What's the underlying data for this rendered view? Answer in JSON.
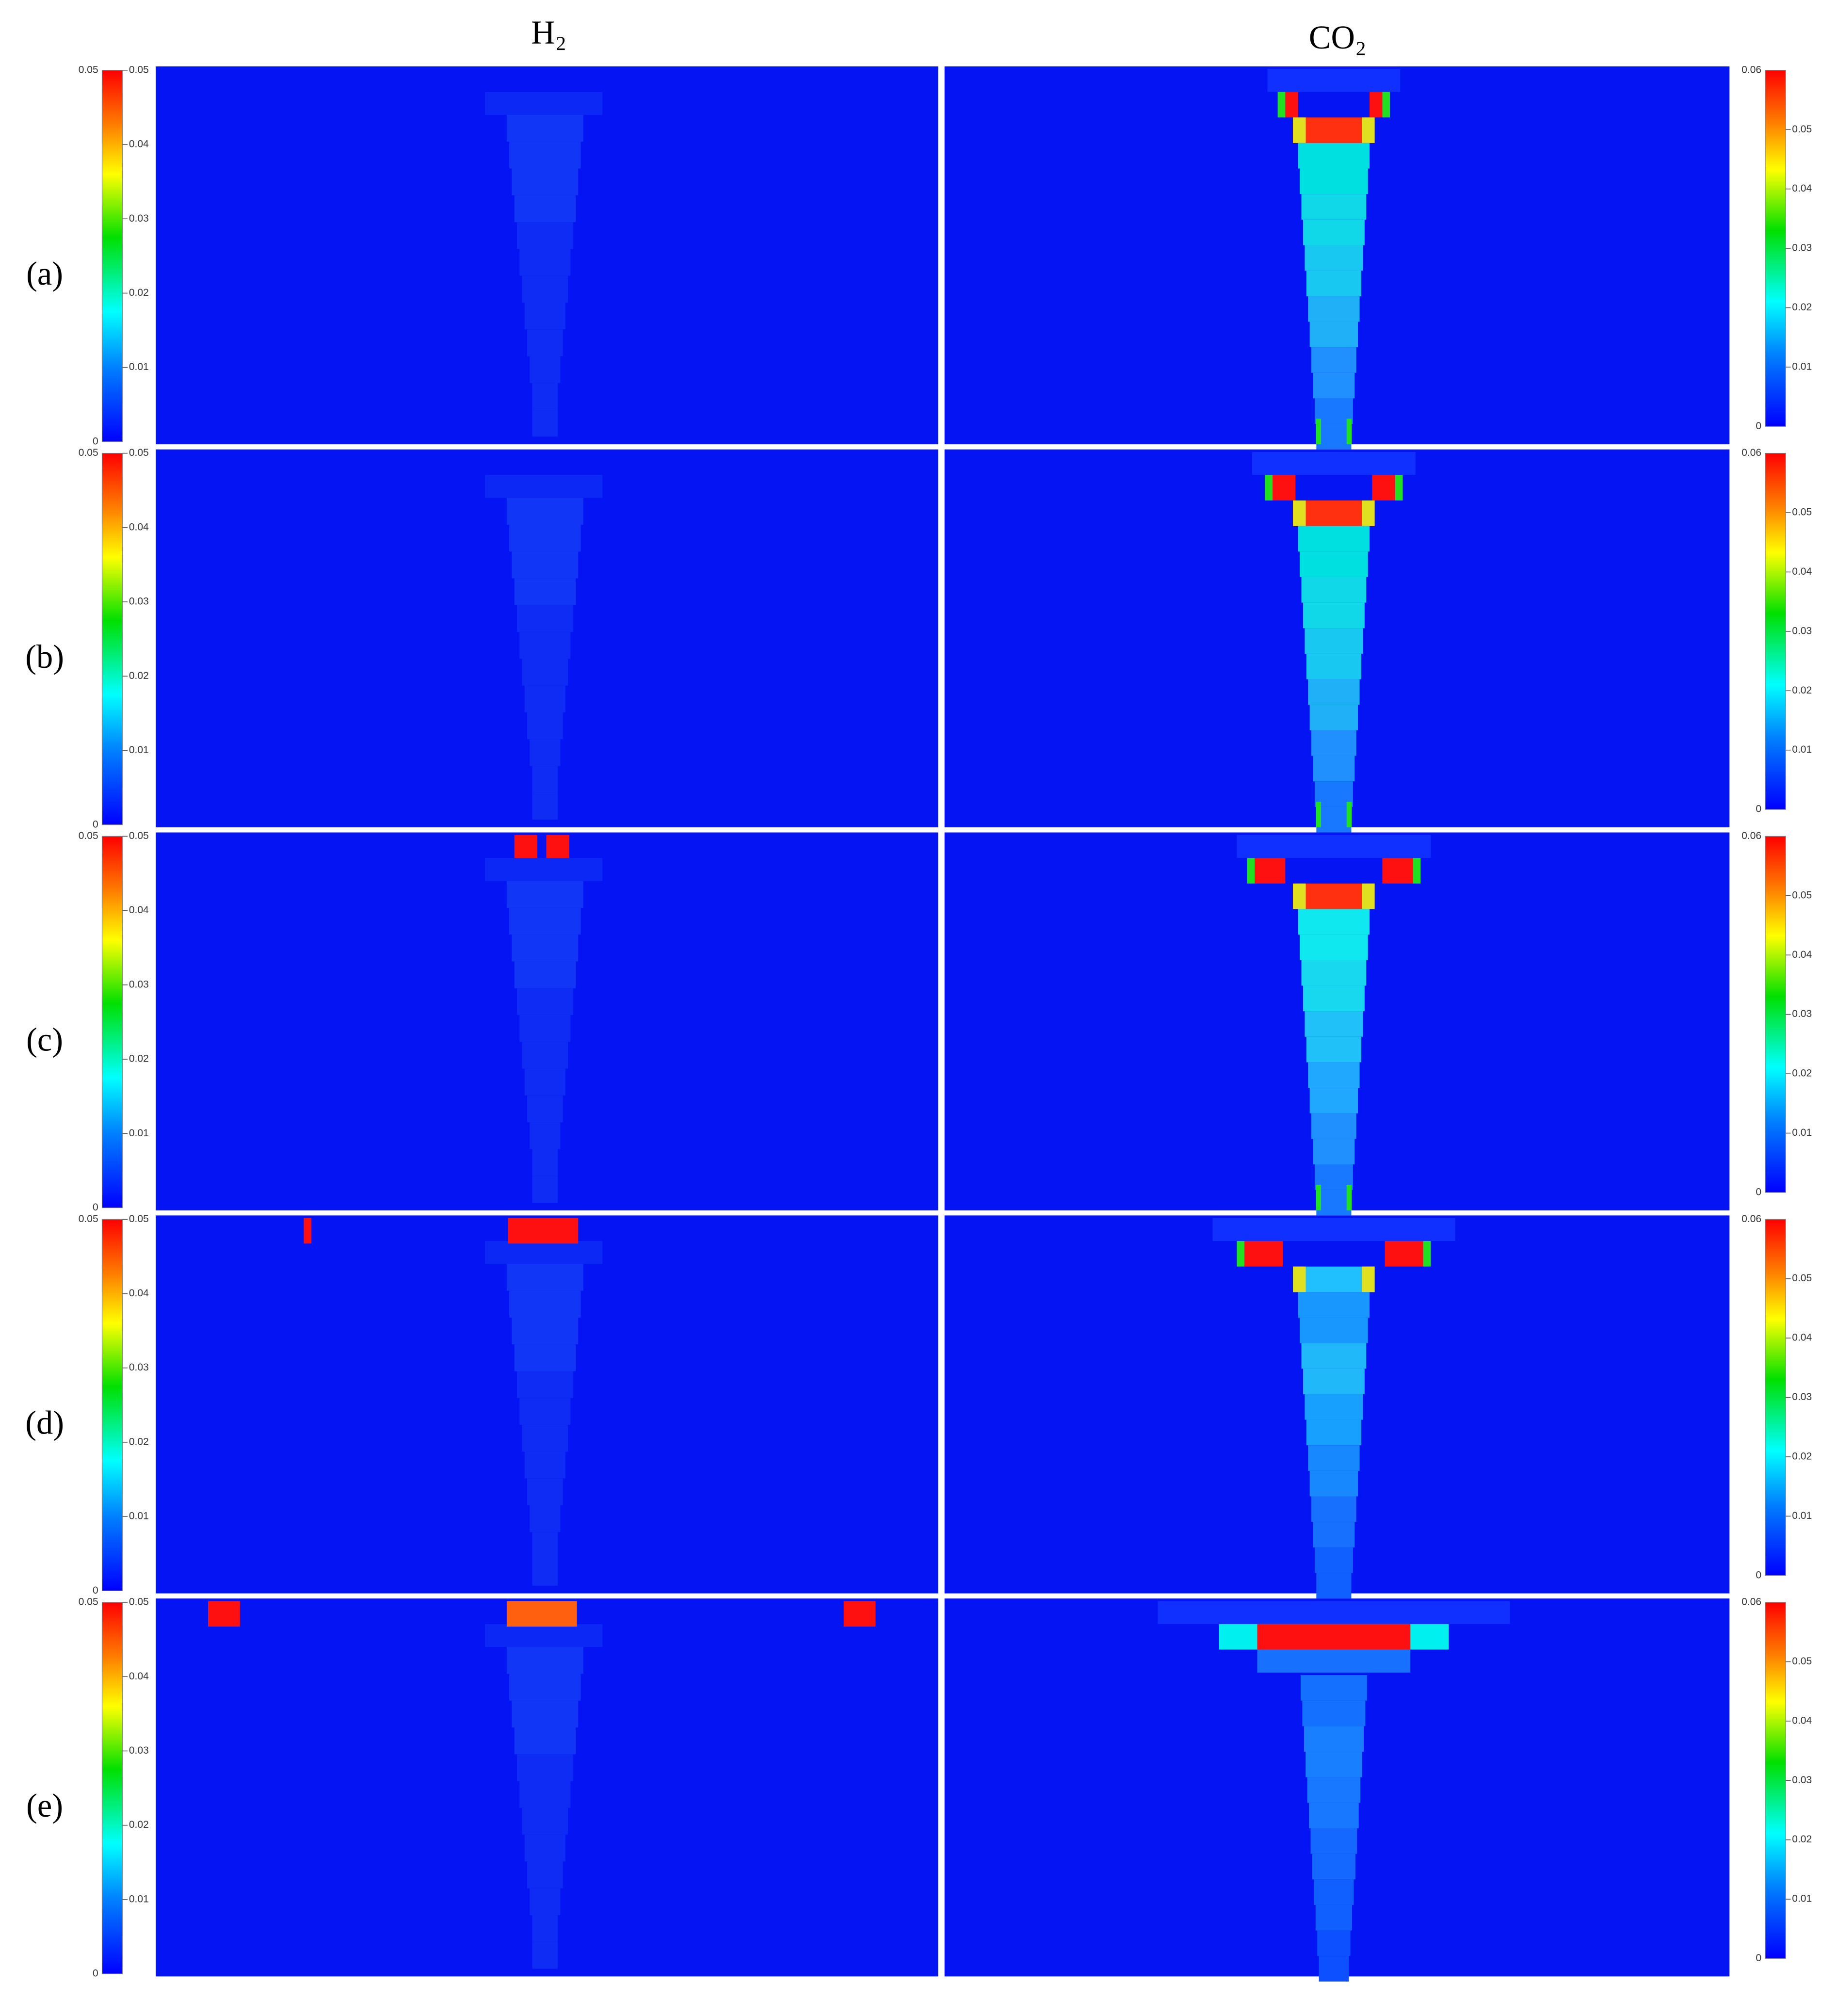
{
  "columns": [
    "H₂",
    "CO₂"
  ],
  "rows": [
    {
      "label": "(a)"
    },
    {
      "label": "(b)"
    },
    {
      "label": "(c)"
    },
    {
      "label": "(d)"
    },
    {
      "label": "(e)"
    }
  ],
  "colorbars": [
    {
      "range": [
        0,
        0.05
      ],
      "ticks": [
        0.01,
        0.02,
        0.03,
        0.04,
        0.05
      ]
    },
    {
      "range": [
        0,
        0.06
      ],
      "ticks": [
        0.01,
        0.02,
        0.03,
        0.04,
        0.05
      ]
    }
  ]
}
